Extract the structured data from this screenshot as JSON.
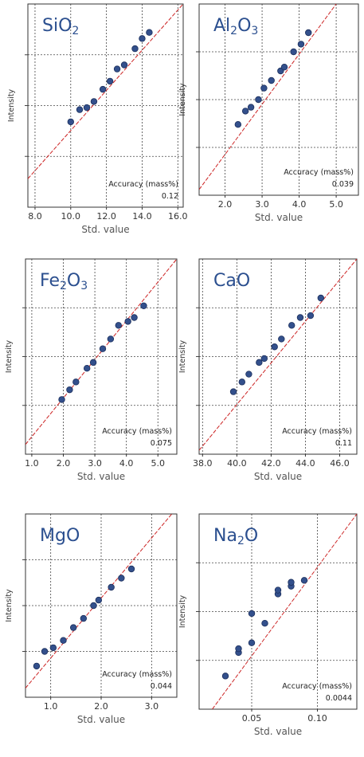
{
  "chart_data": [
    {
      "type": "scatter",
      "title": [
        "SiO",
        "2",
        ""
      ],
      "xlabel": "Std. value",
      "ylabel": "Intensity",
      "xticks": [
        "8.0",
        "10.0",
        "12.0",
        "14.0",
        "16.0"
      ],
      "xlim": [
        7.6,
        16.3
      ],
      "ylim": [
        0,
        1
      ],
      "accuracy_label": "Accuracy (mass%)",
      "accuracy_value": "0.12",
      "points": [
        [
          10.0,
          0.42
        ],
        [
          10.5,
          0.48
        ],
        [
          10.9,
          0.49
        ],
        [
          11.3,
          0.52
        ],
        [
          11.8,
          0.58
        ],
        [
          12.2,
          0.62
        ],
        [
          12.6,
          0.68
        ],
        [
          13.0,
          0.7
        ],
        [
          13.6,
          0.78
        ],
        [
          14.0,
          0.83
        ],
        [
          14.4,
          0.86
        ]
      ],
      "line": [
        [
          7.6,
          0.14
        ],
        [
          16.3,
          1.0
        ]
      ]
    },
    {
      "type": "scatter",
      "title": [
        "Al",
        "2",
        "O",
        "3",
        ""
      ],
      "xlabel": "Std. value",
      "ylabel": "Intensity",
      "xticks": [
        "2.0",
        "3.0",
        "4.0",
        "5.0"
      ],
      "xlim": [
        1.3,
        5.6
      ],
      "ylim": [
        0,
        1
      ],
      "accuracy_label": "Accuracy (mass%)",
      "accuracy_value": "0.039",
      "points": [
        [
          2.35,
          0.37
        ],
        [
          2.55,
          0.44
        ],
        [
          2.7,
          0.46
        ],
        [
          2.9,
          0.5
        ],
        [
          3.05,
          0.56
        ],
        [
          3.25,
          0.6
        ],
        [
          3.5,
          0.65
        ],
        [
          3.6,
          0.67
        ],
        [
          3.85,
          0.75
        ],
        [
          4.05,
          0.79
        ],
        [
          4.25,
          0.85
        ]
      ],
      "line": [
        [
          1.3,
          0.03
        ],
        [
          5.0,
          1.0
        ]
      ]
    },
    {
      "type": "scatter",
      "title": [
        "Fe",
        "2",
        "O",
        "3",
        ""
      ],
      "xlabel": "Std. value",
      "ylabel": "Intensity",
      "xticks": [
        "1.0",
        "2.0",
        "3.0",
        "4.0",
        "5.0"
      ],
      "xlim": [
        0.8,
        5.6
      ],
      "ylim": [
        0,
        1
      ],
      "accuracy_label": "Accuracy (mass%)",
      "accuracy_value": "0.075",
      "points": [
        [
          1.95,
          0.28
        ],
        [
          2.2,
          0.33
        ],
        [
          2.4,
          0.37
        ],
        [
          2.75,
          0.44
        ],
        [
          2.95,
          0.47
        ],
        [
          3.25,
          0.54
        ],
        [
          3.5,
          0.59
        ],
        [
          3.75,
          0.66
        ],
        [
          4.05,
          0.68
        ],
        [
          4.25,
          0.7
        ],
        [
          4.55,
          0.76
        ]
      ],
      "line": [
        [
          0.8,
          0.05
        ],
        [
          5.6,
          1.0
        ]
      ]
    },
    {
      "type": "scatter",
      "title": [
        "CaO"
      ],
      "xlabel": "Std. value",
      "ylabel": "Intensity",
      "xticks": [
        "38.0",
        "40.0",
        "42.0",
        "44.0",
        "46.0"
      ],
      "xlim": [
        37.8,
        47.0
      ],
      "ylim": [
        0,
        1
      ],
      "accuracy_label": "Accuracy (mass%)",
      "accuracy_value": "0.11",
      "points": [
        [
          39.8,
          0.32
        ],
        [
          40.3,
          0.37
        ],
        [
          40.7,
          0.41
        ],
        [
          41.3,
          0.47
        ],
        [
          41.6,
          0.49
        ],
        [
          42.2,
          0.55
        ],
        [
          42.6,
          0.59
        ],
        [
          43.2,
          0.66
        ],
        [
          43.7,
          0.7
        ],
        [
          44.3,
          0.71
        ],
        [
          44.9,
          0.8
        ]
      ],
      "line": [
        [
          37.8,
          0.02
        ],
        [
          47.0,
          1.0
        ]
      ]
    },
    {
      "type": "scatter",
      "title": [
        "MgO"
      ],
      "xlabel": "Std. value",
      "ylabel": "Intensity",
      "xticks": [
        "1.0",
        "2.0",
        "3.0"
      ],
      "xlim": [
        0.5,
        3.5
      ],
      "ylim": [
        0,
        1
      ],
      "accuracy_label": "Accuracy (mass%)",
      "accuracy_value": "0.044",
      "points": [
        [
          0.72,
          0.17
        ],
        [
          0.88,
          0.25
        ],
        [
          1.05,
          0.27
        ],
        [
          1.25,
          0.31
        ],
        [
          1.45,
          0.38
        ],
        [
          1.65,
          0.43
        ],
        [
          1.85,
          0.5
        ],
        [
          1.95,
          0.53
        ],
        [
          2.2,
          0.6
        ],
        [
          2.4,
          0.65
        ],
        [
          2.6,
          0.7
        ]
      ],
      "line": [
        [
          0.5,
          0.05
        ],
        [
          3.4,
          1.0
        ]
      ]
    },
    {
      "type": "scatter",
      "title": [
        "Na",
        "2",
        "O"
      ],
      "xlabel": "Std. value",
      "ylabel": "Intensity",
      "xticks": [
        "0.05",
        "0.10"
      ],
      "xlim": [
        0.01,
        0.13
      ],
      "ylim": [
        0,
        1
      ],
      "accuracy_label": "Accuracy (mass%)",
      "accuracy_value": "0.0044",
      "points": [
        [
          0.03,
          0.17
        ],
        [
          0.04,
          0.29
        ],
        [
          0.04,
          0.31
        ],
        [
          0.05,
          0.34
        ],
        [
          0.05,
          0.49
        ],
        [
          0.06,
          0.44
        ],
        [
          0.07,
          0.59
        ],
        [
          0.07,
          0.61
        ],
        [
          0.08,
          0.63
        ],
        [
          0.08,
          0.65
        ],
        [
          0.09,
          0.66
        ]
      ],
      "line": [
        [
          0.02,
          0.0
        ],
        [
          0.13,
          1.0
        ]
      ]
    }
  ]
}
